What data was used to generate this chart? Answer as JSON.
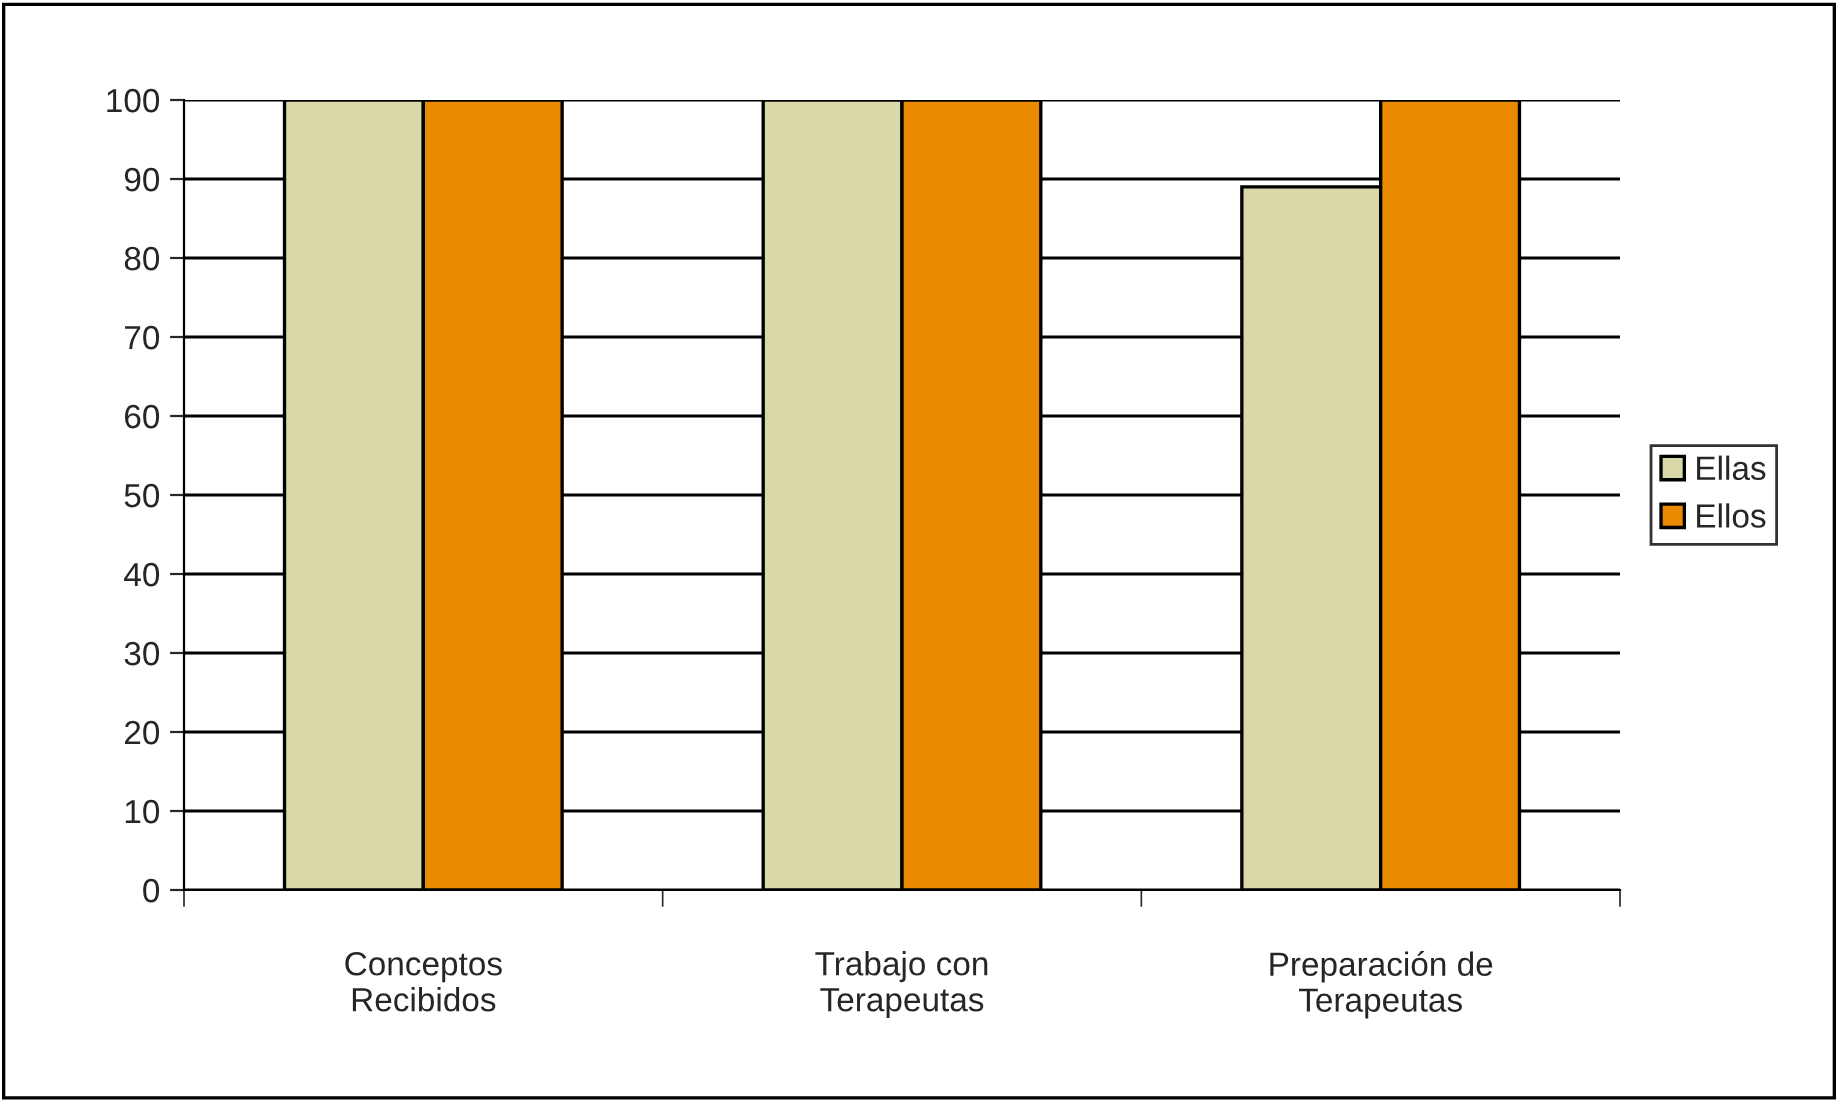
{
  "chart_data": {
    "type": "bar",
    "categories": [
      "Conceptos\nRecibidos",
      "Trabajo con\nTerapeutas",
      "Preparación de\nTerapeutas"
    ],
    "series": [
      {
        "name": "Ellas",
        "color": "#d9d8a8",
        "values": [
          100,
          100,
          89
        ]
      },
      {
        "name": "Ellos",
        "color": "#e98a00",
        "values": [
          100,
          100,
          100
        ]
      }
    ],
    "ylim": [
      0,
      100
    ],
    "yticks": [
      0,
      10,
      20,
      30,
      40,
      50,
      60,
      70,
      80,
      90,
      100
    ],
    "grid": "y",
    "legend": "right"
  }
}
